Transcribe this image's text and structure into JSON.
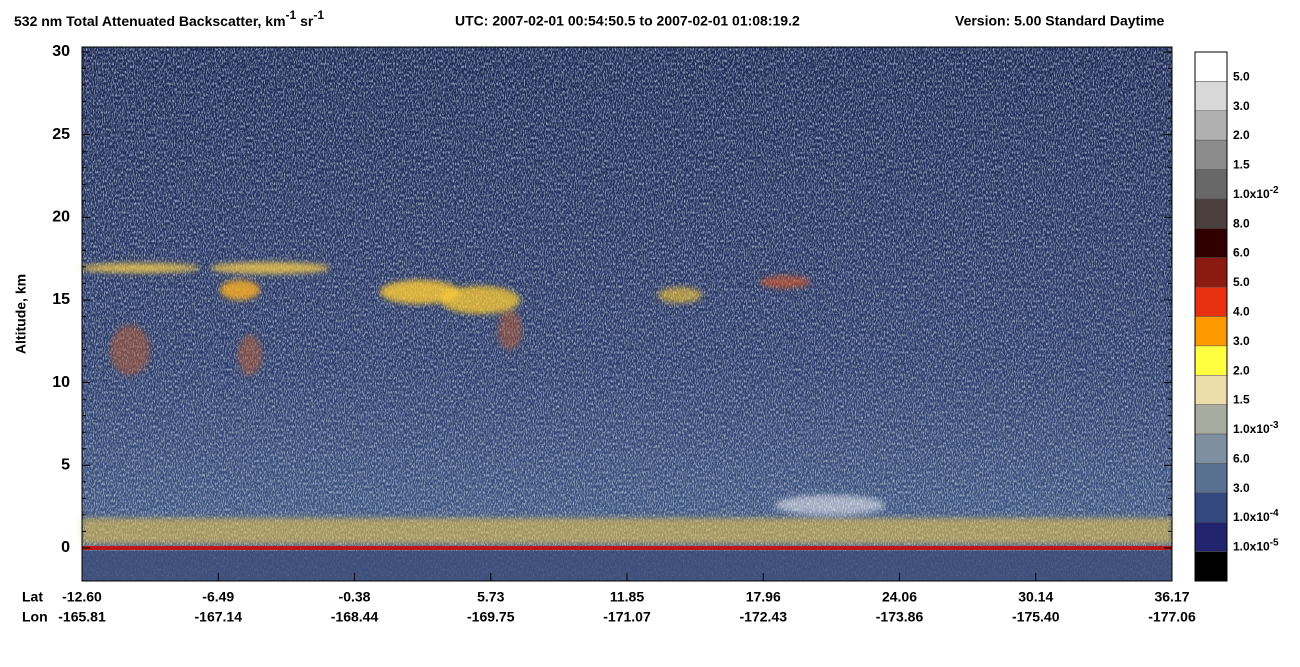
{
  "chart_data": {
    "type": "heatmap",
    "title_parts": [
      "532 nm Total Attenuated Backscatter, km",
      "-1",
      " sr",
      "-1"
    ],
    "time_range": "UTC:  2007-02-01 00:54:50.5  to  2007-02-01 01:08:19.2",
    "version": "Version: 5.00  Standard  Daytime",
    "ylabel": "Altitude, km",
    "ylim": [
      -2,
      30
    ],
    "yticks": [
      0,
      5,
      10,
      15,
      20,
      25,
      30
    ],
    "lat_name": "Lat",
    "lon_name": "Lon",
    "lat_labels": [
      "-12.60",
      "-6.49",
      "-0.38",
      "5.73",
      "11.85",
      "17.96",
      "24.06",
      "30.14",
      "36.17"
    ],
    "lon_labels": [
      "-165.81",
      "-167.14",
      "-168.44",
      "-169.75",
      "-171.07",
      "-172.43",
      "-173.86",
      "-175.40",
      "-177.06"
    ],
    "colorbar_colors": [
      "#ffffff",
      "#d8d8d8",
      "#b0b0b0",
      "#8c8c8c",
      "#686868",
      "#4a3f3c",
      "#300000",
      "#8b1a10",
      "#e83010",
      "#ff9900",
      "#ffff40",
      "#ecdcaa",
      "#a8aca0",
      "#7d8fa0",
      "#5a7090",
      "#344880",
      "#22246e",
      "#000000"
    ],
    "colorbar_labels": [
      {
        "text": "5.0"
      },
      {
        "text": "3.0"
      },
      {
        "text": "2.0"
      },
      {
        "text": "1.5"
      },
      {
        "text": "1.0x10",
        "exp": "-2"
      },
      {
        "text": "8.0"
      },
      {
        "text": "6.0"
      },
      {
        "text": "5.0"
      },
      {
        "text": "4.0"
      },
      {
        "text": "3.0"
      },
      {
        "text": "2.0"
      },
      {
        "text": "1.5"
      },
      {
        "text": "1.0x10",
        "exp": "-3"
      },
      {
        "text": "6.0"
      },
      {
        "text": "3.0"
      },
      {
        "text": "1.0x10",
        "exp": "-4"
      },
      {
        "text": "1.0x10",
        "exp": "-5"
      }
    ]
  }
}
